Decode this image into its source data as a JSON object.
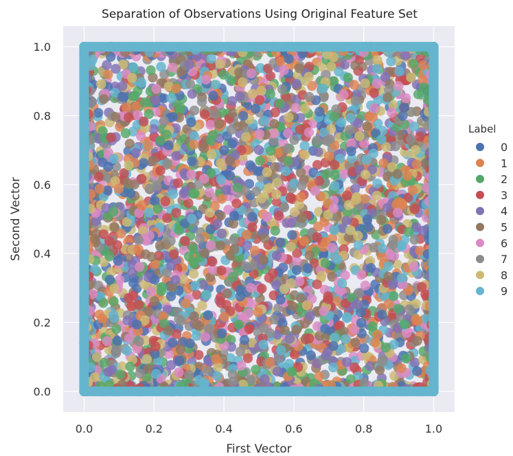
{
  "chart_data": {
    "type": "scatter",
    "title": "Separation of Observations Using Original Feature Set",
    "xlabel": "First Vector",
    "ylabel": "Second Vector",
    "xlim": [
      -0.06,
      1.06
    ],
    "ylim": [
      -0.06,
      1.06
    ],
    "xticks": [
      "0.0",
      "0.2",
      "0.4",
      "0.6",
      "0.8",
      "1.0"
    ],
    "yticks": [
      "0.0",
      "0.2",
      "0.4",
      "0.6",
      "0.8",
      "1.0"
    ],
    "xtick_values": [
      0.0,
      0.2,
      0.4,
      0.6,
      0.8,
      1.0
    ],
    "ytick_values": [
      0.0,
      0.2,
      0.4,
      0.6,
      0.8,
      1.0
    ],
    "grid": true,
    "legend": {
      "title": "Label",
      "placement": "right",
      "entries": [
        "0",
        "1",
        "2",
        "3",
        "4",
        "5",
        "6",
        "7",
        "8",
        "9"
      ]
    },
    "series_colors": [
      "#4c72b0",
      "#dd8452",
      "#55a868",
      "#c44e52",
      "#8172b3",
      "#937860",
      "#da8bc3",
      "#8c8c8c",
      "#ccb974",
      "#64b5cd"
    ],
    "background_color": "#eaeaf2",
    "points_per_series": 420,
    "note_distribution": "points uniformly scattered over [0,1]x[0,1] with dense clusters along the borders"
  }
}
